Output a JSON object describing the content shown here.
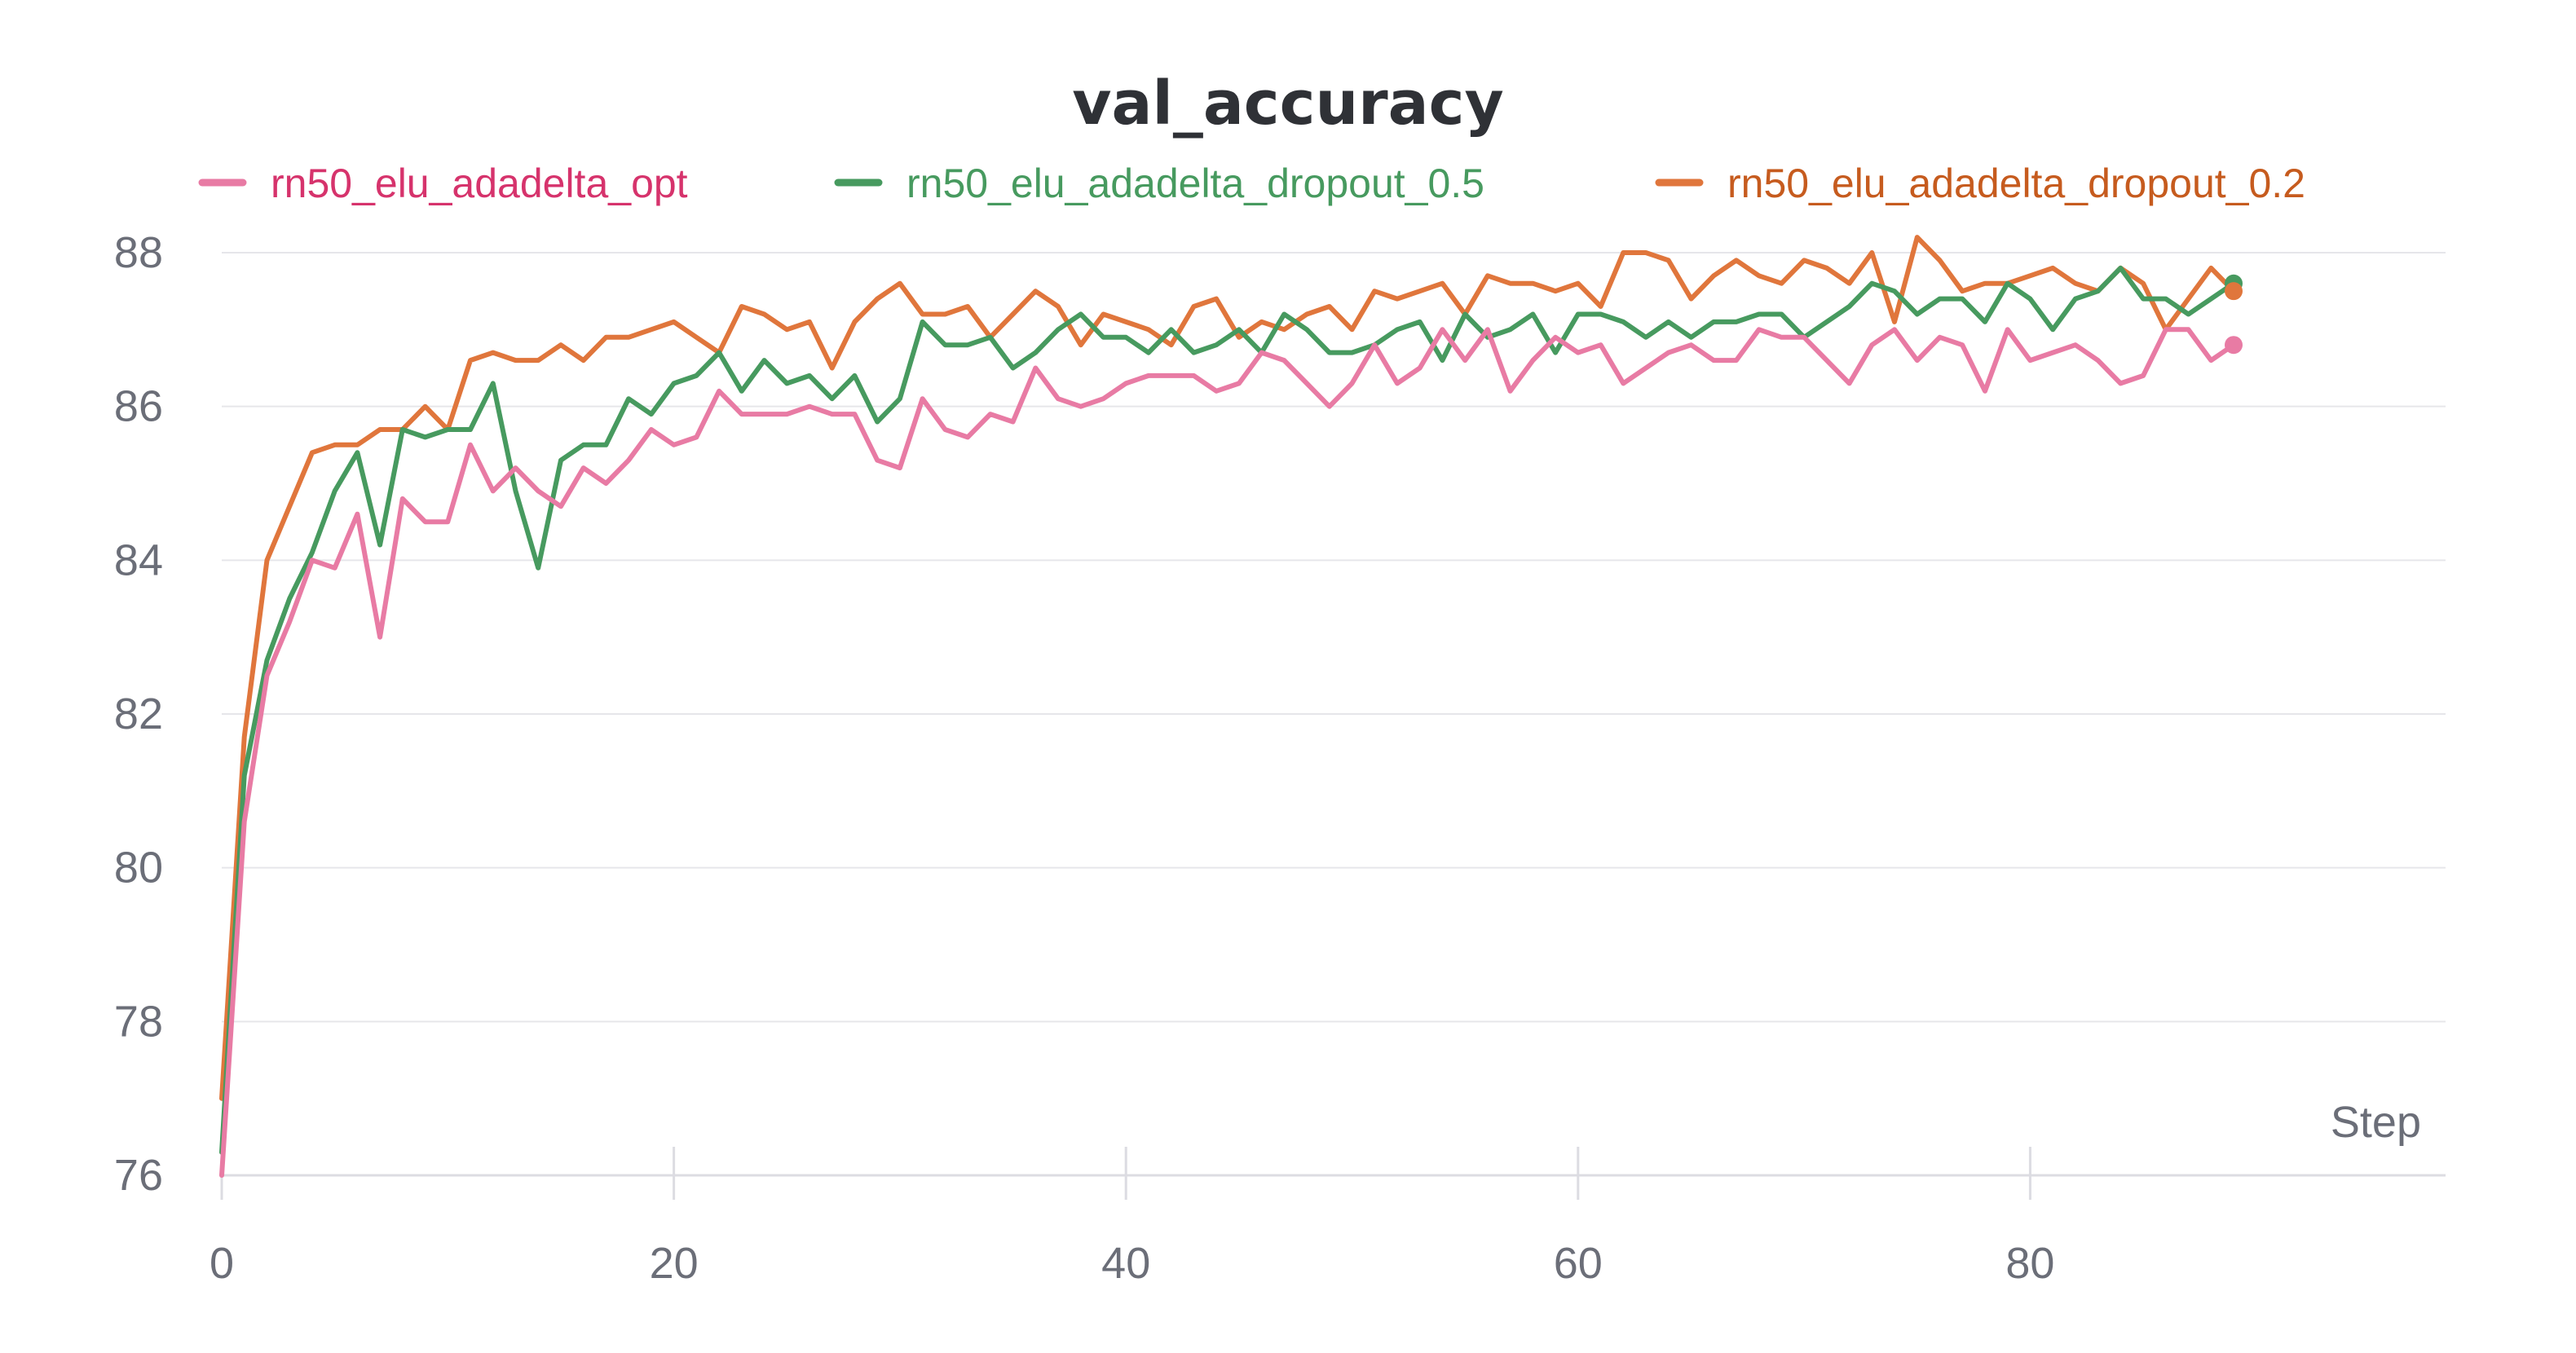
{
  "chart_data": {
    "type": "line",
    "title": "val_accuracy",
    "xlabel": "Step",
    "ylabel": "",
    "xlim": [
      0,
      89
    ],
    "ylim": [
      76,
      88.4
    ],
    "xticks": [
      0,
      20,
      40,
      60,
      80
    ],
    "yticks": [
      76,
      78,
      80,
      82,
      84,
      86,
      88
    ],
    "grid": true,
    "legend_position": "top",
    "series": [
      {
        "name": "rn50_elu_adadelta_opt",
        "color": "#e87ba4",
        "label_color": "#d6336c",
        "values": [
          76.0,
          80.6,
          82.5,
          83.2,
          84.0,
          83.9,
          84.6,
          83.0,
          84.8,
          84.5,
          84.5,
          85.5,
          84.9,
          85.2,
          84.9,
          84.7,
          85.2,
          85.0,
          85.3,
          85.7,
          85.5,
          85.6,
          86.2,
          85.9,
          85.9,
          85.9,
          86.0,
          85.9,
          85.9,
          85.3,
          85.2,
          86.1,
          85.7,
          85.6,
          85.9,
          85.8,
          86.5,
          86.1,
          86.0,
          86.1,
          86.3,
          86.4,
          86.4,
          86.4,
          86.2,
          86.3,
          86.7,
          86.6,
          86.3,
          86.0,
          86.3,
          86.8,
          86.3,
          86.5,
          87.0,
          86.6,
          87.0,
          86.2,
          86.6,
          86.9,
          86.7,
          86.8,
          86.3,
          86.5,
          86.7,
          86.8,
          86.6,
          86.6,
          87.0,
          86.9,
          86.9,
          86.6,
          86.3,
          86.8,
          87.0,
          86.6,
          86.9,
          86.8,
          86.2,
          87.0,
          86.6,
          86.7,
          86.8,
          86.6,
          86.3,
          86.4,
          87.0,
          87.0,
          86.6,
          86.8
        ]
      },
      {
        "name": "rn50_elu_adadelta_dropout_0.5",
        "color": "#479a5f",
        "label_color": "#479a5f",
        "values": [
          76.3,
          81.2,
          82.7,
          83.5,
          84.1,
          84.9,
          85.4,
          84.2,
          85.7,
          85.6,
          85.7,
          85.7,
          86.3,
          84.9,
          83.9,
          85.3,
          85.5,
          85.5,
          86.1,
          85.9,
          86.3,
          86.4,
          86.7,
          86.2,
          86.6,
          86.3,
          86.4,
          86.1,
          86.4,
          85.8,
          86.1,
          87.1,
          86.8,
          86.8,
          86.9,
          86.5,
          86.7,
          87.0,
          87.2,
          86.9,
          86.9,
          86.7,
          87.0,
          86.7,
          86.8,
          87.0,
          86.7,
          87.2,
          87.0,
          86.7,
          86.7,
          86.8,
          87.0,
          87.1,
          86.6,
          87.2,
          86.9,
          87.0,
          87.2,
          86.7,
          87.2,
          87.2,
          87.1,
          86.9,
          87.1,
          86.9,
          87.1,
          87.1,
          87.2,
          87.2,
          86.9,
          87.1,
          87.3,
          87.6,
          87.5,
          87.2,
          87.4,
          87.4,
          87.1,
          87.6,
          87.4,
          87.0,
          87.4,
          87.5,
          87.8,
          87.4,
          87.4,
          87.2,
          87.4,
          87.6
        ]
      },
      {
        "name": "rn50_elu_adadelta_dropout_0.2",
        "color": "#e0763c",
        "label_color": "#c65b1e",
        "values": [
          77.0,
          81.7,
          84.0,
          84.7,
          85.4,
          85.5,
          85.5,
          85.7,
          85.7,
          86.0,
          85.7,
          86.6,
          86.7,
          86.6,
          86.6,
          86.8,
          86.6,
          86.9,
          86.9,
          87.0,
          87.1,
          86.9,
          86.7,
          87.3,
          87.2,
          87.0,
          87.1,
          86.5,
          87.1,
          87.4,
          87.6,
          87.2,
          87.2,
          87.3,
          86.9,
          87.2,
          87.5,
          87.3,
          86.8,
          87.2,
          87.1,
          87.0,
          86.8,
          87.3,
          87.4,
          86.9,
          87.1,
          87.0,
          87.2,
          87.3,
          87.0,
          87.5,
          87.4,
          87.5,
          87.6,
          87.2,
          87.7,
          87.6,
          87.6,
          87.5,
          87.6,
          87.3,
          88.0,
          88.0,
          87.9,
          87.4,
          87.7,
          87.9,
          87.7,
          87.6,
          87.9,
          87.8,
          87.6,
          88.0,
          87.1,
          88.2,
          87.9,
          87.5,
          87.6,
          87.6,
          87.7,
          87.8,
          87.6,
          87.5,
          87.8,
          87.6,
          87.0,
          87.4,
          87.8,
          87.5
        ]
      }
    ]
  }
}
